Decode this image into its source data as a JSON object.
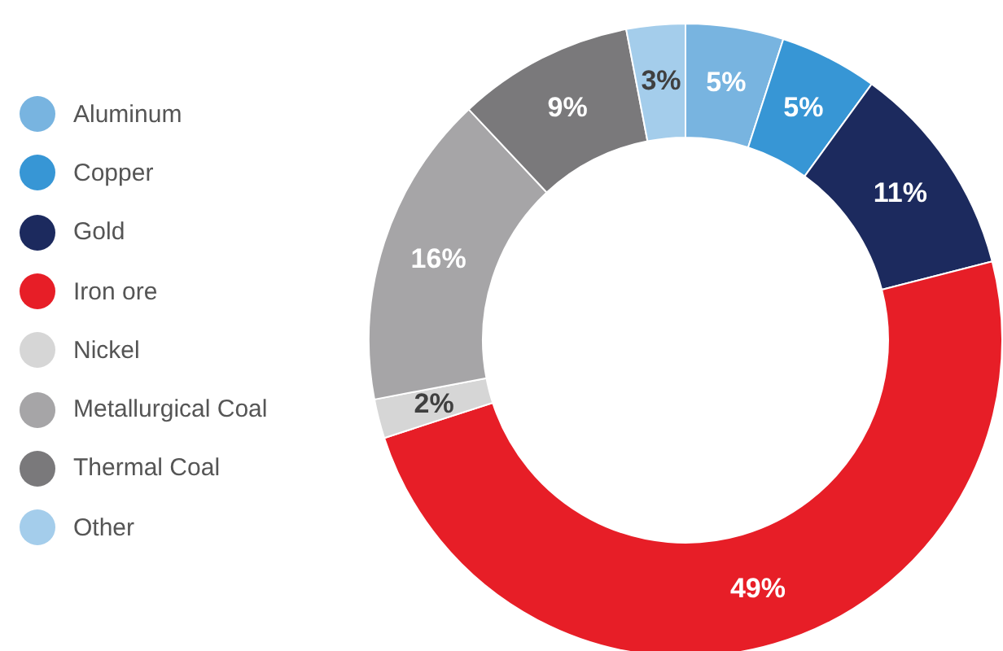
{
  "chart_data": {
    "type": "donut",
    "categories": [
      "Aluminum",
      "Copper",
      "Gold",
      "Iron ore",
      "Nickel",
      "Metallurgical Coal",
      "Thermal Coal",
      "Other"
    ],
    "values": [
      5,
      5,
      11,
      49,
      2,
      16,
      9,
      3
    ],
    "colors": [
      "#78b4e0",
      "#3796d5",
      "#1c2a5e",
      "#e71e27",
      "#d6d6d6",
      "#a6a5a7",
      "#7a797b",
      "#a4cdeb"
    ],
    "value_labels": [
      "5%",
      "5%",
      "11%",
      "49%",
      "2%",
      "16%",
      "9%",
      "3%"
    ],
    "legend": "left"
  }
}
